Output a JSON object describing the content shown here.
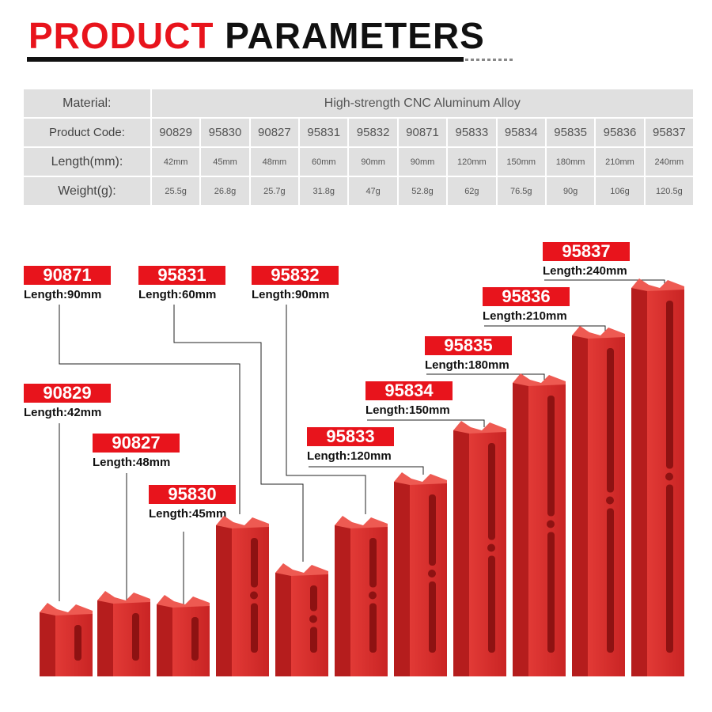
{
  "header": {
    "title_accent": "PRODUCT",
    "title": "PARAMETERS"
  },
  "table": {
    "rows": [
      [
        "Material:",
        "High-strength CNC Aluminum Alloy"
      ],
      [
        "Product Code:",
        "90829",
        "95830",
        "90827",
        "95831",
        "95832",
        "90871",
        "95833",
        "95834",
        "95835",
        "95836",
        "95837"
      ],
      [
        "Length(mm):",
        "42mm",
        "45mm",
        "48mm",
        "60mm",
        "90mm",
        "90mm",
        "120mm",
        "150mm",
        "180mm",
        "210mm",
        "240mm"
      ],
      [
        "Weight(g):",
        "25.5g",
        "26.8g",
        "25.7g",
        "31.8g",
        "47g",
        "52.8g",
        "62g",
        "76.5g",
        "90g",
        "106g",
        "120.5g"
      ]
    ]
  },
  "products": [
    {
      "code": "90829",
      "length": "Length:42mm"
    },
    {
      "code": "90827",
      "length": "Length:48mm"
    },
    {
      "code": "95830",
      "length": "Length:45mm"
    },
    {
      "code": "90871",
      "length": "Length:90mm"
    },
    {
      "code": "95831",
      "length": "Length:60mm"
    },
    {
      "code": "95832",
      "length": "Length:90mm"
    },
    {
      "code": "95833",
      "length": "Length:120mm"
    },
    {
      "code": "95834",
      "length": "Length:150mm"
    },
    {
      "code": "95835",
      "length": "Length:180mm"
    },
    {
      "code": "95836",
      "length": "Length:210mm"
    },
    {
      "code": "95837",
      "length": "Length:240mm"
    }
  ]
}
